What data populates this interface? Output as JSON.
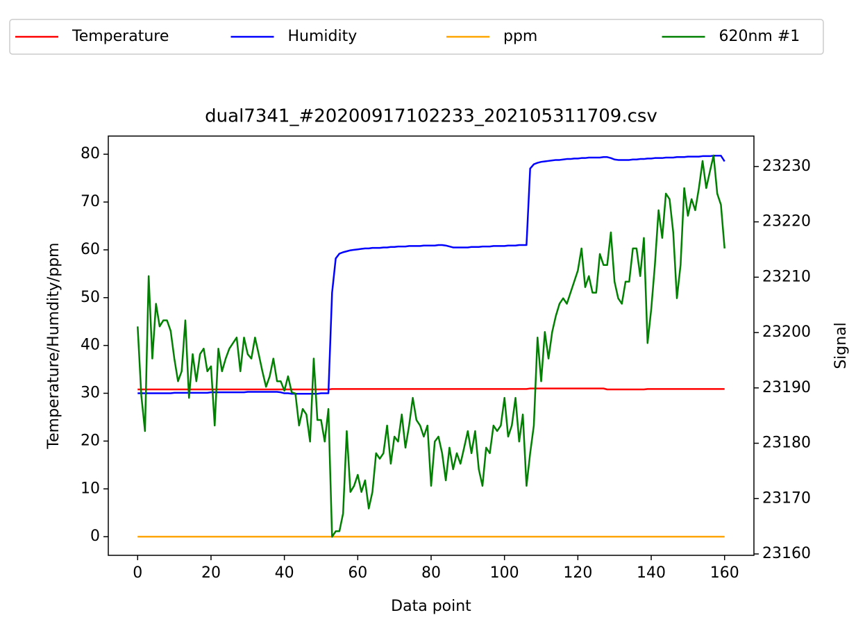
{
  "chart_data": {
    "type": "line",
    "title": "dual7341_#20200917102233_202105311709.csv",
    "xlabel": "Data point",
    "ylabel": "Temperature/Humdity/ppm",
    "y2label": "Signal",
    "legend": "top",
    "x": [
      0,
      1,
      2,
      3,
      4,
      5,
      6,
      7,
      8,
      9,
      10,
      11,
      12,
      13,
      14,
      15,
      16,
      17,
      18,
      19,
      20,
      21,
      22,
      23,
      24,
      25,
      26,
      27,
      28,
      29,
      30,
      31,
      32,
      33,
      34,
      35,
      36,
      37,
      38,
      39,
      40,
      41,
      42,
      43,
      44,
      45,
      46,
      47,
      48,
      49,
      50,
      51,
      52,
      53,
      54,
      55,
      56,
      57,
      58,
      59,
      60,
      61,
      62,
      63,
      64,
      65,
      66,
      67,
      68,
      69,
      70,
      71,
      72,
      73,
      74,
      75,
      76,
      77,
      78,
      79,
      80,
      81,
      82,
      83,
      84,
      85,
      86,
      87,
      88,
      89,
      90,
      91,
      92,
      93,
      94,
      95,
      96,
      97,
      98,
      99,
      100,
      101,
      102,
      103,
      104,
      105,
      106,
      107,
      108,
      109,
      110,
      111,
      112,
      113,
      114,
      115,
      116,
      117,
      118,
      119,
      120,
      121,
      122,
      123,
      124,
      125,
      126,
      127,
      128,
      129,
      130,
      131,
      132,
      133,
      134,
      135,
      136,
      137,
      138,
      139,
      140,
      141,
      142,
      143,
      144,
      145,
      146,
      147,
      148,
      149,
      150,
      151,
      152,
      153,
      154,
      155,
      156,
      157,
      158,
      159,
      160
    ],
    "xlim": [
      -8,
      168
    ],
    "xticks": [
      0,
      20,
      40,
      60,
      80,
      100,
      120,
      140,
      160
    ],
    "ylim": [
      -3.9,
      83.8
    ],
    "yticks": [
      0,
      10,
      20,
      30,
      40,
      50,
      60,
      70,
      80
    ],
    "y2lim": [
      23159.75,
      23235.5
    ],
    "y2ticks": [
      23160,
      23170,
      23180,
      23190,
      23200,
      23210,
      23220,
      23230
    ],
    "series": [
      {
        "name": "Temperature",
        "color": "#ff0000",
        "values": [
          30.8,
          30.8,
          30.8,
          30.8,
          30.8,
          30.8,
          30.8,
          30.8,
          30.8,
          30.8,
          30.8,
          30.8,
          30.8,
          30.8,
          30.8,
          30.8,
          30.8,
          30.8,
          30.8,
          30.8,
          30.8,
          30.8,
          30.8,
          30.8,
          30.8,
          30.8,
          30.8,
          30.8,
          30.8,
          30.8,
          30.8,
          30.8,
          30.8,
          30.8,
          30.8,
          30.8,
          30.8,
          30.8,
          30.8,
          30.8,
          30.8,
          30.8,
          30.8,
          30.8,
          30.8,
          30.8,
          30.8,
          30.8,
          30.8,
          30.8,
          30.8,
          30.8,
          30.8,
          30.9,
          30.9,
          30.9,
          30.9,
          30.9,
          30.9,
          30.9,
          30.9,
          30.9,
          30.9,
          30.9,
          30.9,
          30.9,
          30.9,
          30.9,
          30.9,
          30.9,
          30.9,
          30.9,
          30.9,
          30.9,
          30.9,
          30.9,
          30.9,
          30.9,
          30.9,
          30.9,
          30.9,
          30.9,
          30.9,
          30.9,
          30.9,
          30.9,
          30.9,
          30.9,
          30.9,
          30.9,
          30.9,
          30.9,
          30.9,
          30.9,
          30.9,
          30.9,
          30.9,
          30.9,
          30.9,
          30.9,
          30.9,
          30.9,
          30.9,
          30.9,
          30.9,
          30.9,
          30.9,
          31.0,
          31.0,
          31.0,
          31.0,
          31.0,
          31.0,
          31.0,
          31.0,
          31.0,
          31.0,
          31.0,
          31.0,
          31.0,
          31.0,
          31.0,
          31.0,
          31.0,
          31.0,
          31.0,
          31.0,
          31.0,
          30.8,
          30.8,
          30.8,
          30.8,
          30.8,
          30.8,
          30.8,
          30.8,
          30.8,
          30.8,
          30.8,
          30.9,
          30.9,
          30.9,
          30.9,
          30.9,
          30.9,
          30.9,
          30.9,
          30.9,
          30.9,
          30.9,
          30.9,
          30.9,
          30.9,
          30.9,
          30.9,
          30.9,
          30.9,
          30.9,
          30.9,
          30.9,
          30.9
        ]
      },
      {
        "name": "Humidity",
        "color": "#0000ff",
        "values": [
          30.0,
          30.0,
          30.0,
          30.0,
          30.0,
          30.0,
          30.0,
          30.0,
          30.0,
          30.0,
          30.1,
          30.1,
          30.1,
          30.1,
          30.1,
          30.1,
          30.1,
          30.1,
          30.1,
          30.1,
          30.2,
          30.2,
          30.2,
          30.2,
          30.2,
          30.2,
          30.2,
          30.2,
          30.2,
          30.2,
          30.3,
          30.3,
          30.3,
          30.3,
          30.3,
          30.3,
          30.3,
          30.3,
          30.3,
          30.2,
          30.0,
          30.0,
          29.9,
          29.9,
          29.9,
          29.9,
          29.9,
          29.9,
          29.9,
          29.9,
          30.0,
          30.0,
          30.0,
          51.0,
          58.2,
          59.2,
          59.5,
          59.7,
          59.9,
          60.0,
          60.1,
          60.2,
          60.3,
          60.3,
          60.4,
          60.4,
          60.4,
          60.5,
          60.5,
          60.6,
          60.6,
          60.7,
          60.7,
          60.7,
          60.8,
          60.8,
          60.8,
          60.8,
          60.9,
          60.9,
          60.9,
          60.9,
          61.0,
          61.0,
          60.9,
          60.7,
          60.5,
          60.5,
          60.5,
          60.5,
          60.5,
          60.6,
          60.6,
          60.6,
          60.7,
          60.7,
          60.7,
          60.8,
          60.8,
          60.8,
          60.8,
          60.9,
          60.9,
          60.9,
          61.0,
          61.0,
          61.0,
          77.0,
          77.9,
          78.2,
          78.4,
          78.5,
          78.6,
          78.7,
          78.8,
          78.8,
          78.9,
          79.0,
          79.0,
          79.1,
          79.1,
          79.2,
          79.2,
          79.3,
          79.3,
          79.3,
          79.3,
          79.4,
          79.4,
          79.2,
          78.9,
          78.8,
          78.8,
          78.8,
          78.8,
          78.9,
          78.9,
          79.0,
          79.0,
          79.1,
          79.1,
          79.2,
          79.2,
          79.2,
          79.3,
          79.3,
          79.3,
          79.4,
          79.4,
          79.4,
          79.5,
          79.5,
          79.5,
          79.5,
          79.6,
          79.6,
          79.6,
          79.7,
          79.7,
          79.7,
          78.5
        ]
      },
      {
        "name": "ppm",
        "color": "#ffa500",
        "values": [
          0,
          0,
          0,
          0,
          0,
          0,
          0,
          0,
          0,
          0,
          0,
          0,
          0,
          0,
          0,
          0,
          0,
          0,
          0,
          0,
          0,
          0,
          0,
          0,
          0,
          0,
          0,
          0,
          0,
          0,
          0,
          0,
          0,
          0,
          0,
          0,
          0,
          0,
          0,
          0,
          0,
          0,
          0,
          0,
          0,
          0,
          0,
          0,
          0,
          0,
          0,
          0,
          0,
          0,
          0,
          0,
          0,
          0,
          0,
          0,
          0,
          0,
          0,
          0,
          0,
          0,
          0,
          0,
          0,
          0,
          0,
          0,
          0,
          0,
          0,
          0,
          0,
          0,
          0,
          0,
          0,
          0,
          0,
          0,
          0,
          0,
          0,
          0,
          0,
          0,
          0,
          0,
          0,
          0,
          0,
          0,
          0,
          0,
          0,
          0,
          0,
          0,
          0,
          0,
          0,
          0,
          0,
          0,
          0,
          0,
          0,
          0,
          0,
          0,
          0,
          0,
          0,
          0,
          0,
          0,
          0,
          0,
          0,
          0,
          0,
          0,
          0,
          0,
          0,
          0,
          0,
          0,
          0,
          0,
          0,
          0,
          0,
          0,
          0,
          0,
          0,
          0,
          0,
          0,
          0,
          0,
          0,
          0,
          0,
          0,
          0,
          0,
          0,
          0,
          0,
          0,
          0,
          0,
          0,
          0,
          0
        ]
      },
      {
        "name": "620nm #1",
        "color": "#008000",
        "axis": "y2",
        "values": [
          23201.1,
          23188.6,
          23182.2,
          23210.2,
          23195.3,
          23205.2,
          23201.1,
          23202.2,
          23202.2,
          23200.3,
          23195.3,
          23191.2,
          23193,
          23202.2,
          23188.2,
          23196.1,
          23191.2,
          23196.1,
          23197.1,
          23193,
          23193.9,
          23183.2,
          23197.1,
          23193,
          23195.3,
          23197.1,
          23198.1,
          23199.1,
          23193,
          23199.1,
          23196.1,
          23195.3,
          23199.1,
          23196.1,
          23193,
          23190.2,
          23192.1,
          23195.3,
          23191.2,
          23191.2,
          23189.5,
          23192.1,
          23189.2,
          23189,
          23183.2,
          23186.2,
          23185.2,
          23180.3,
          23195.3,
          23184.2,
          23184.2,
          23180.3,
          23186.2,
          23163.1,
          23164.1,
          23164.1,
          23167.3,
          23182.2,
          23171.2,
          23172.3,
          23174.3,
          23171.2,
          23173.3,
          23168.2,
          23171.2,
          23178.2,
          23177.2,
          23178.2,
          23183.2,
          23176.3,
          23181.2,
          23180.3,
          23185.2,
          23179.2,
          23183.2,
          23188.2,
          23184.2,
          23183.2,
          23181.2,
          23183.2,
          23172.3,
          23180.3,
          23181.2,
          23178.2,
          23173.3,
          23179.2,
          23175.3,
          23178.2,
          23176.3,
          23179.2,
          23182.2,
          23178.2,
          23182.2,
          23175.3,
          23172.3,
          23179.2,
          23178.2,
          23183.2,
          23182.2,
          23183.2,
          23188.2,
          23181.2,
          23183.2,
          23188.2,
          23180.3,
          23185.2,
          23172.3,
          23178.2,
          23183.2,
          23199.1,
          23191.2,
          23200.1,
          23195.3,
          23200.1,
          23203,
          23205.2,
          23206.2,
          23205.2,
          23207.2,
          23209.2,
          23211.2,
          23215.2,
          23208.2,
          23210.2,
          23207.2,
          23207.2,
          23214.2,
          23212.2,
          23212.2,
          23218.1,
          23209.2,
          23206.2,
          23205.2,
          23209.2,
          23209.2,
          23215.2,
          23215.2,
          23210.2,
          23217.1,
          23198.1,
          23204.2,
          23212.2,
          23222.1,
          23217.1,
          23225.1,
          23224.1,
          23218.1,
          23206.2,
          23212.2,
          23226.1,
          23221.1,
          23224.1,
          23222.1,
          23226.1,
          23231,
          23226.1,
          23229.1,
          23232,
          23225.1,
          23223.1,
          23215.2
        ]
      }
    ]
  }
}
